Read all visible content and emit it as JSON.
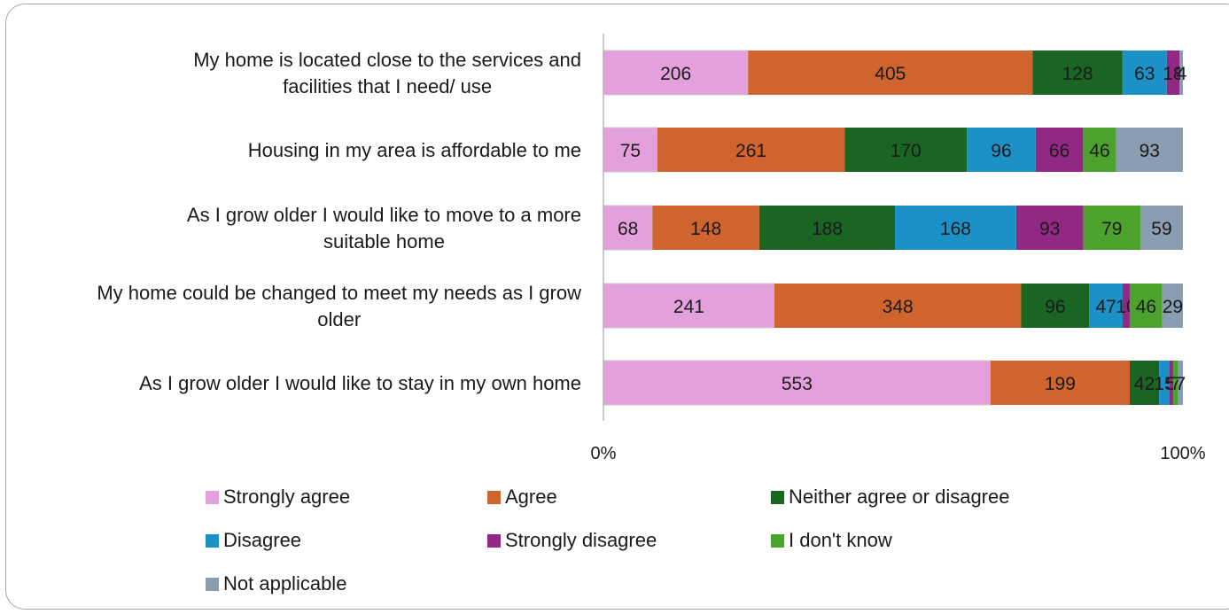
{
  "chart_data": {
    "type": "bar",
    "orientation": "horizontal",
    "stacked": "percent",
    "categories": [
      "My home is located close to the services and facilities that I need/ use",
      "Housing in my area is affordable to me",
      "As I grow older I would like to move to a more suitable home",
      "My home could be changed to meet my needs as I grow older",
      "As I grow older I would like to stay in my own home"
    ],
    "series": [
      {
        "name": "Strongly agree",
        "color": "#e4a0dd",
        "values": [
          206,
          75,
          68,
          241,
          553
        ]
      },
      {
        "name": "Agree",
        "color": "#d0642e",
        "values": [
          405,
          261,
          148,
          348,
          199
        ]
      },
      {
        "name": "Neither agree or disagree",
        "color": "#1a6424",
        "values": [
          128,
          170,
          188,
          96,
          42
        ]
      },
      {
        "name": "Disagree",
        "color": "#1b91c8",
        "values": [
          63,
          96,
          168,
          47,
          15
        ]
      },
      {
        "name": "Strongly disagree",
        "color": "#912883",
        "values": [
          18,
          66,
          93,
          10,
          5
        ]
      },
      {
        "name": "I don't know",
        "color": "#4da22e",
        "values": [
          1,
          46,
          79,
          46,
          7
        ]
      },
      {
        "name": "Not applicable",
        "color": "#8b9db1",
        "values": [
          4,
          93,
          59,
          29,
          7
        ]
      }
    ],
    "xlim": [
      0,
      100
    ],
    "x_ticks": [
      "0%",
      "100%"
    ],
    "legend_position": "bottom",
    "grid": false
  }
}
